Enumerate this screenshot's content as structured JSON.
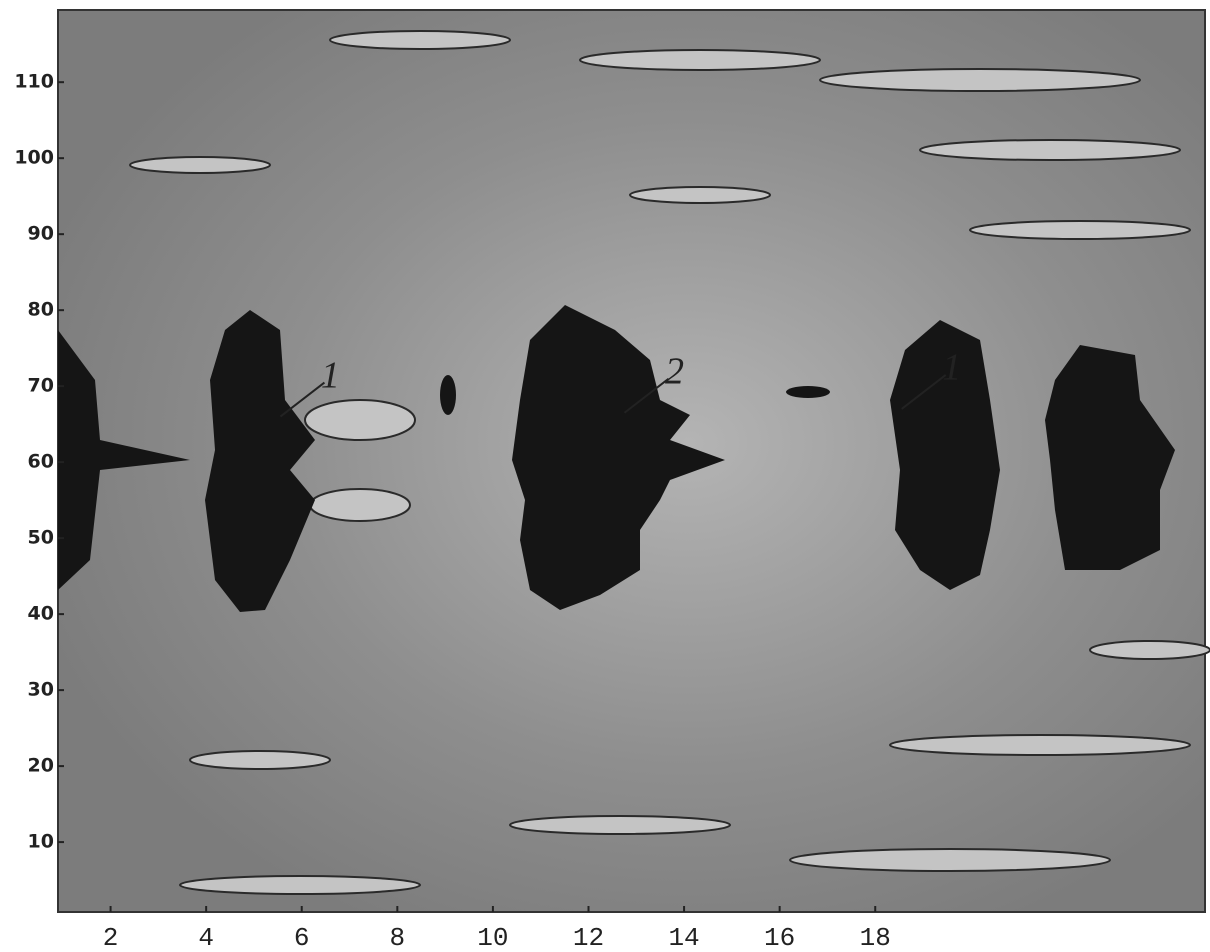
{
  "chart_data": {
    "type": "contour",
    "xlim": [
      0.9,
      24.9
    ],
    "ylim": [
      0.8,
      119.5
    ],
    "xticks": [
      2,
      4,
      6,
      8,
      10,
      12,
      14,
      16,
      18
    ],
    "yticks": [
      10,
      20,
      30,
      40,
      50,
      60,
      70,
      80,
      90,
      100,
      110
    ],
    "annotations": [
      {
        "text": "1",
        "x": 6.6,
        "y": 71
      },
      {
        "text": "2",
        "x": 13.8,
        "y": 71.5
      },
      {
        "text": "1",
        "x": 19.6,
        "y": 72
      }
    ]
  }
}
